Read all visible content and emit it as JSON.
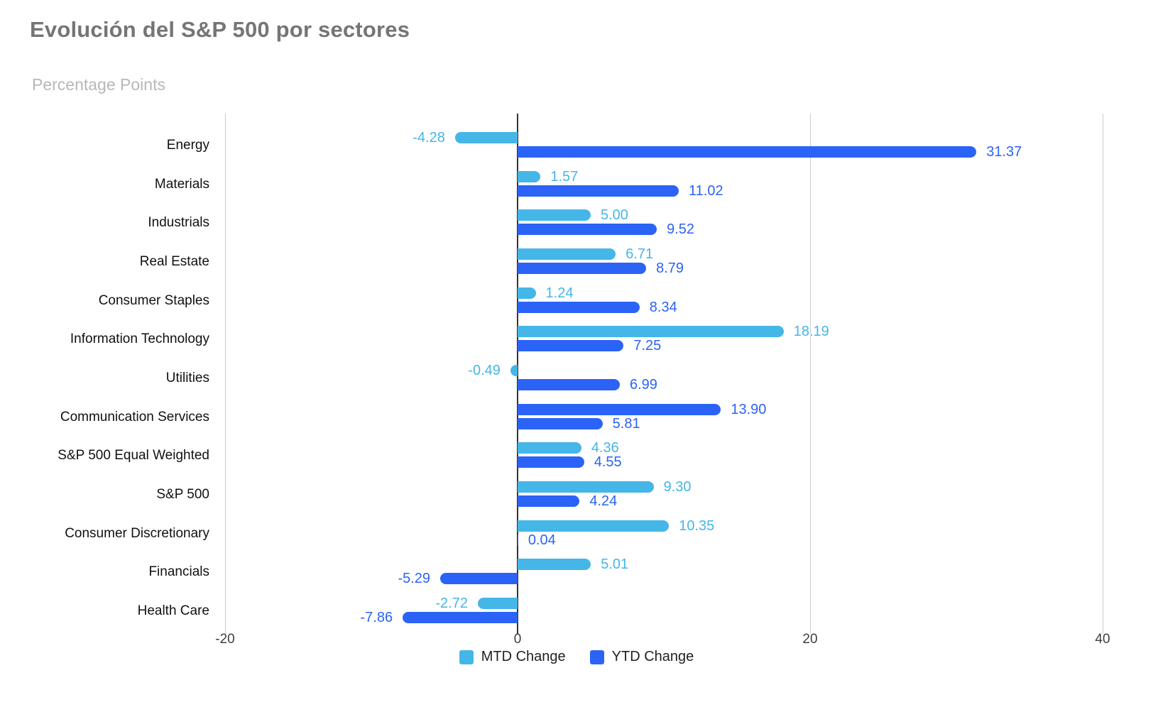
{
  "page": {
    "background": "#ffffff"
  },
  "chart_data": {
    "type": "bar",
    "orientation": "horizontal",
    "title": "Evolución del S&P 500 por sectores",
    "subtitle": "Percentage Points",
    "categories": [
      "Energy",
      "Materials",
      "Industrials",
      "Real Estate",
      "Consumer Staples",
      "Information Technology",
      "Utilities",
      "Communication Services",
      "S&P 500 Equal Weighted",
      "S&P 500",
      "Consumer Discretionary",
      "Financials",
      "Health Care"
    ],
    "series": [
      {
        "name": "MTD Change",
        "color": "#45b6e8",
        "values": [
          -4.28,
          1.57,
          5.0,
          6.71,
          1.24,
          18.19,
          -0.49,
          13.9,
          4.36,
          9.3,
          10.35,
          5.01,
          -2.72
        ]
      },
      {
        "name": "YTD Change",
        "color": "#2b63f6",
        "values": [
          31.37,
          11.02,
          9.52,
          8.79,
          8.34,
          7.25,
          6.99,
          5.81,
          4.55,
          4.24,
          0.04,
          -5.29,
          -7.86
        ]
      }
    ],
    "bar_color_overrides": [
      {
        "series_index": 0,
        "category_index": 7,
        "color": "#2b63f6"
      }
    ],
    "xlim": [
      -20,
      40
    ],
    "xticks": [
      -20,
      0,
      20,
      40
    ],
    "grid": true,
    "legend_position": "bottom",
    "value_label_format": "2-decimals-outside-end"
  },
  "colors": {
    "mtd": "#45b6e8",
    "ytd": "#2b63f6",
    "title_text": "#757575",
    "subtitle_text": "#b7b7b7",
    "category_text": "#111111",
    "tick_text": "#3c4043",
    "gridline": "#cccccc",
    "zero_axis": "#333333"
  }
}
